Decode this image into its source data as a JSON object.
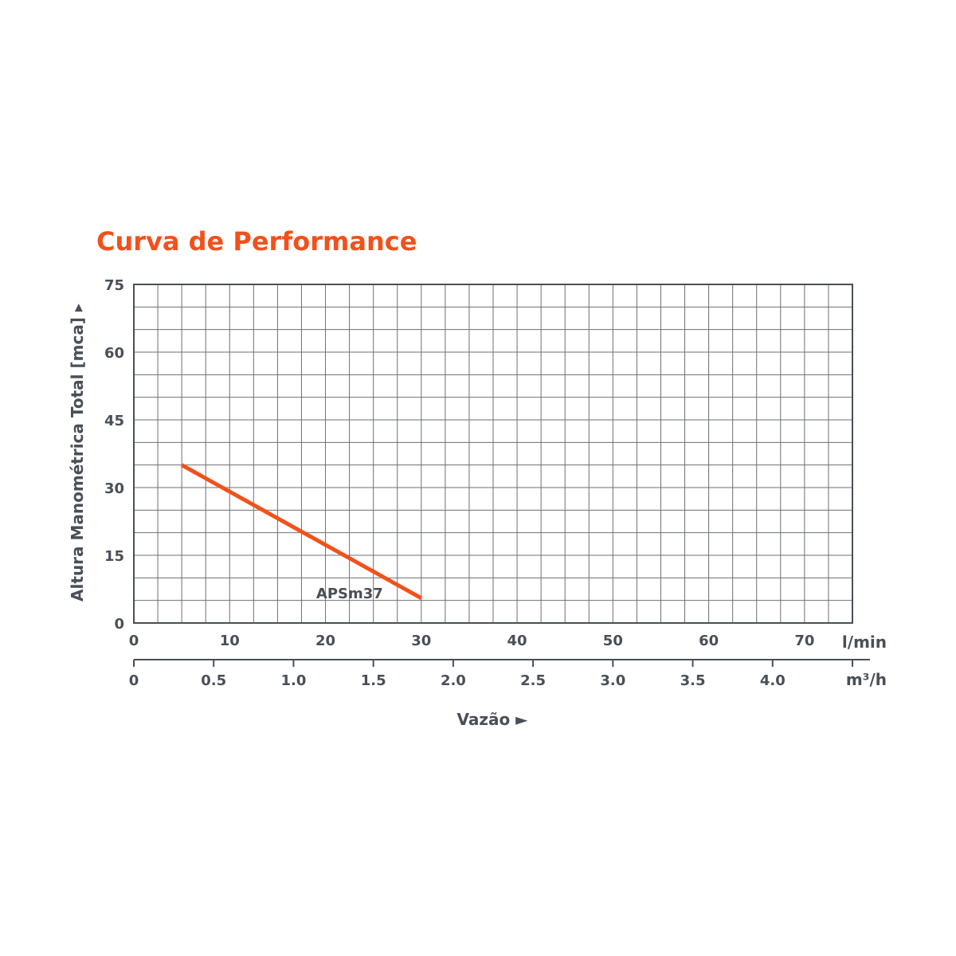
{
  "chart_data": {
    "type": "line",
    "title": "Curva de Performance",
    "ylabel": "Altura Manométrica Total [mca] ▸",
    "xlabel": "Vazão ►",
    "x_unit": "l/min",
    "x2_unit": "m³/h",
    "xlim": [
      0,
      75
    ],
    "ylim": [
      0,
      75
    ],
    "x_ticks": [
      "0",
      "10",
      "20",
      "30",
      "40",
      "50",
      "60",
      "70"
    ],
    "x_tick_values": [
      0,
      10,
      20,
      30,
      40,
      50,
      60,
      70
    ],
    "x2_ticks": [
      "0",
      "0.5",
      "1.0",
      "1.5",
      "2.0",
      "2.5",
      "3.0",
      "3.5",
      "4.0"
    ],
    "x2_tick_values": [
      0,
      0.5,
      1.0,
      1.5,
      2.0,
      2.5,
      3.0,
      3.5,
      4.0
    ],
    "x2_max": 4.5,
    "y_ticks": [
      "0",
      "15",
      "30",
      "45",
      "60",
      "75"
    ],
    "y_tick_values": [
      0,
      15,
      30,
      45,
      60,
      75
    ],
    "grid": true,
    "grid_x_step": 2.5,
    "grid_y_step": 5,
    "series": [
      {
        "name": "APSm37",
        "color": "#f2511b",
        "x": [
          5,
          30
        ],
        "y": [
          35,
          5.5
        ]
      }
    ]
  }
}
